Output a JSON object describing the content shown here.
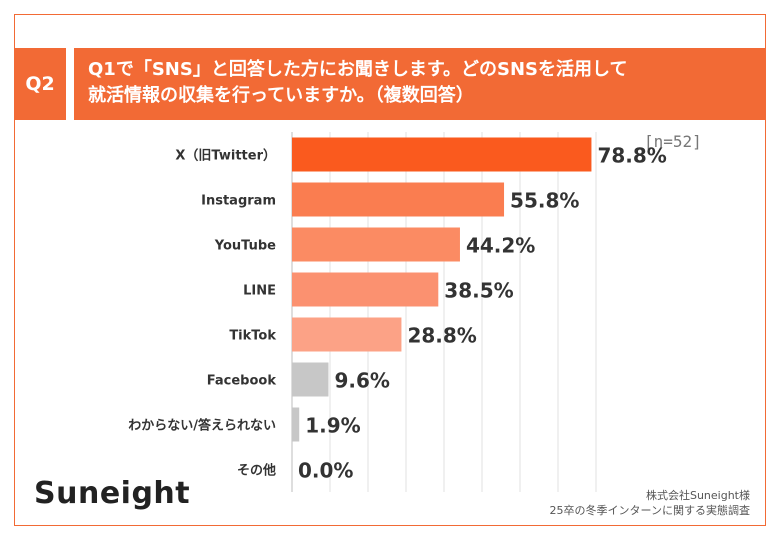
{
  "question": {
    "badge": "Q2",
    "line1": "Q1で「SNS」と回答した方にお聞きします。どのSNSを活用して",
    "line2": "就活情報の収集を行っていますか。（複数回答）"
  },
  "sample_size": "[n=52]",
  "brand": "Suneight",
  "source": {
    "line1": "株式会社Suneight様",
    "line2": "25卒の冬季インターンに関する実態調査"
  },
  "chart_data": {
    "type": "bar",
    "orientation": "horizontal",
    "categories": [
      "X（旧Twitter）",
      "Instagram",
      "YouTube",
      "LINE",
      "TikTok",
      "Facebook",
      "わからない/答えられない",
      "その他"
    ],
    "values": [
      78.8,
      55.8,
      44.2,
      38.5,
      28.8,
      9.6,
      1.9,
      0.0
    ],
    "value_labels": [
      "78.8%",
      "55.8%",
      "44.2%",
      "38.5%",
      "28.8%",
      "9.6%",
      "1.9%",
      "0.0%"
    ],
    "xlim": [
      0,
      80
    ],
    "gridlines": true,
    "colors": [
      "#fa5a1e",
      "#fa7d50",
      "#fb8b63",
      "#fb9170",
      "#fca286",
      "#c7c7c7",
      "#c7c7c7",
      "#c7c7c7"
    ]
  }
}
